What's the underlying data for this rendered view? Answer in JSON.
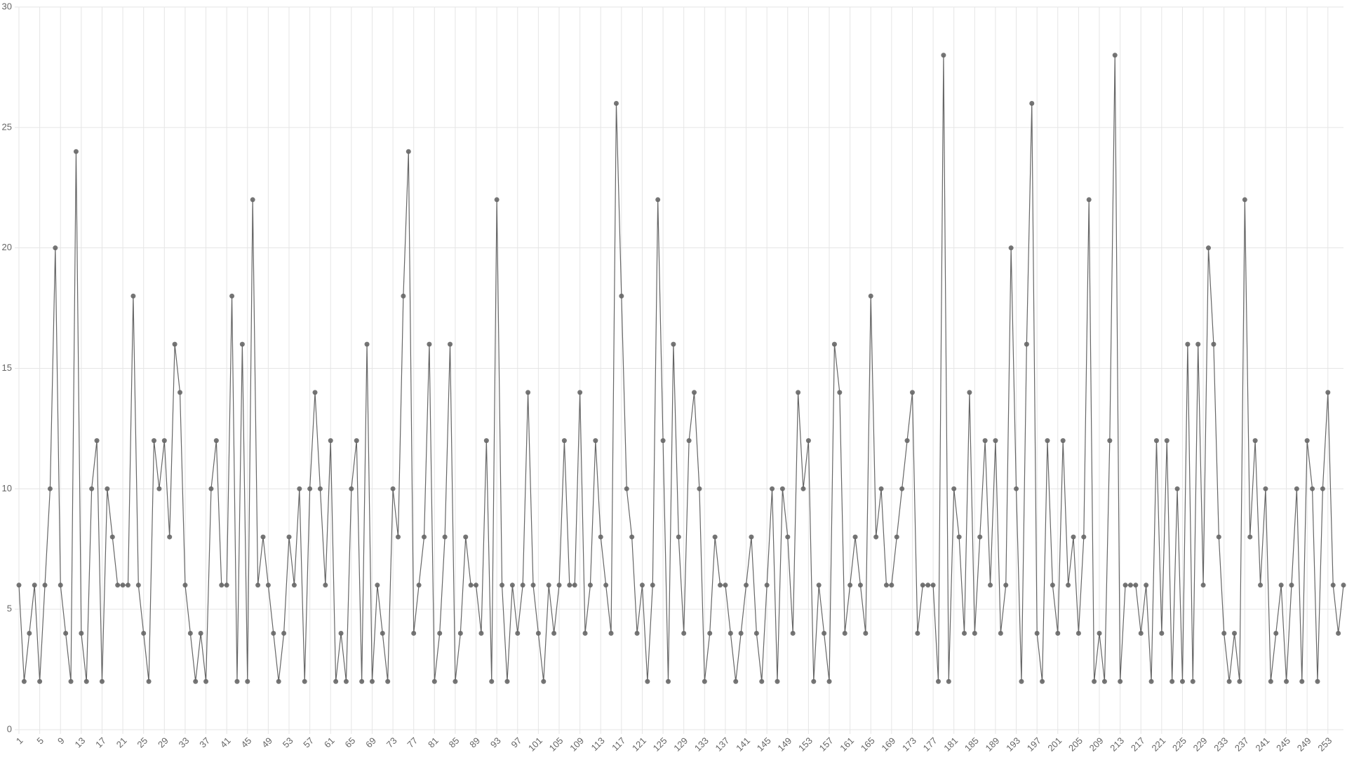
{
  "chart_data": {
    "type": "line",
    "color": "#666666",
    "grid": true,
    "categories": [
      1,
      null,
      null,
      null,
      5,
      null,
      null,
      null,
      9,
      null,
      null,
      null,
      13,
      null,
      null,
      null,
      17,
      null,
      null,
      null,
      21,
      null,
      null,
      null,
      25,
      null,
      null,
      null,
      29,
      null,
      null,
      null,
      33,
      null,
      null,
      null,
      37,
      null,
      null,
      null,
      41,
      null,
      null,
      null,
      45,
      null,
      null,
      null,
      49,
      null,
      null,
      null,
      53,
      null,
      null,
      null,
      57,
      null,
      null,
      null,
      61,
      null,
      null,
      null,
      65,
      null,
      null,
      null,
      69,
      null,
      null,
      null,
      73,
      null,
      null,
      null,
      77,
      null,
      null,
      null,
      81,
      null,
      null,
      null,
      85,
      null,
      null,
      null,
      89,
      null,
      null,
      null,
      93,
      null,
      null,
      null,
      97,
      null,
      null,
      null,
      101,
      null,
      null,
      null,
      105,
      null,
      null,
      null,
      109,
      null,
      null,
      null,
      113,
      null,
      null,
      null,
      117,
      null,
      null,
      null,
      121,
      null,
      null,
      null,
      125,
      null,
      null,
      null,
      129,
      null,
      null,
      null,
      133,
      null,
      null,
      null,
      137,
      null,
      null,
      null,
      141,
      null,
      null,
      null,
      145,
      null,
      null,
      null,
      149,
      null,
      null,
      null,
      153,
      null,
      null,
      null,
      157,
      null,
      null,
      null,
      161,
      null,
      null,
      null,
      165,
      null,
      null,
      null,
      169,
      null,
      null,
      null,
      173,
      null,
      null,
      null,
      177,
      null,
      null,
      null,
      181,
      null,
      null,
      null,
      185,
      null,
      null,
      null,
      189,
      null,
      null,
      null,
      193,
      null,
      null,
      null,
      197,
      null,
      null,
      null,
      201,
      null,
      null,
      null,
      205,
      null,
      null,
      null,
      209,
      null,
      null,
      null,
      213,
      null,
      null,
      null,
      217,
      null,
      null,
      null,
      221,
      null,
      null,
      null,
      225,
      null,
      null,
      null,
      229,
      null,
      null,
      null,
      233,
      null,
      null,
      null,
      237,
      null,
      null,
      null,
      241,
      null,
      null,
      null,
      245,
      null,
      null,
      null,
      249,
      null,
      null,
      null,
      253,
      null,
      null,
      null
    ],
    "values": [
      6,
      2,
      4,
      6,
      2,
      6,
      10,
      20,
      6,
      4,
      2,
      24,
      4,
      2,
      10,
      12,
      2,
      10,
      8,
      6,
      6,
      6,
      18,
      6,
      4,
      2,
      12,
      10,
      12,
      8,
      16,
      14,
      6,
      4,
      2,
      4,
      2,
      10,
      12,
      6,
      6,
      18,
      2,
      16,
      2,
      22,
      6,
      8,
      6,
      4,
      2,
      4,
      8,
      6,
      10,
      2,
      10,
      14,
      10,
      6,
      12,
      2,
      4,
      2,
      10,
      12,
      2,
      16,
      2,
      6,
      4,
      2,
      10,
      8,
      18,
      24,
      4,
      6,
      8,
      16,
      2,
      4,
      8,
      16,
      2,
      4,
      8,
      6,
      6,
      4,
      12,
      2,
      22,
      6,
      2,
      6,
      4,
      6,
      14,
      6,
      4,
      2,
      6,
      4,
      6,
      12,
      6,
      6,
      14,
      4,
      6,
      12,
      8,
      6,
      4,
      26,
      18,
      10,
      8,
      4,
      6,
      2,
      6,
      22,
      12,
      2,
      16,
      8,
      4,
      12,
      14,
      10,
      2,
      4,
      8,
      6,
      6,
      4,
      2,
      4,
      6,
      8,
      4,
      2,
      6,
      10,
      2,
      10,
      8,
      4,
      14,
      10,
      12,
      2,
      6,
      4,
      2,
      16,
      14,
      4,
      6,
      8,
      6,
      4,
      18,
      8,
      10,
      6,
      6,
      8,
      10,
      12,
      14,
      4,
      6,
      6,
      6,
      2,
      28,
      2,
      10,
      8,
      4,
      14,
      4,
      8,
      12,
      6,
      12,
      4,
      6,
      20,
      10,
      2,
      16,
      26,
      4,
      2,
      12,
      6,
      4,
      12,
      6,
      8,
      4,
      8,
      22,
      2,
      4,
      2,
      12,
      28,
      2,
      6,
      6,
      6,
      4,
      6,
      2,
      12,
      4,
      12,
      2,
      10,
      2,
      16,
      2,
      16,
      6,
      20,
      16,
      8,
      4,
      2,
      4,
      2,
      22,
      8,
      12,
      6,
      10,
      2,
      4,
      6,
      2,
      6,
      10,
      2,
      12,
      10,
      2,
      10,
      14,
      6,
      4,
      6
    ],
    "ylim": [
      0,
      30
    ],
    "yticks": [
      0,
      5,
      10,
      15,
      20,
      25,
      30
    ]
  }
}
